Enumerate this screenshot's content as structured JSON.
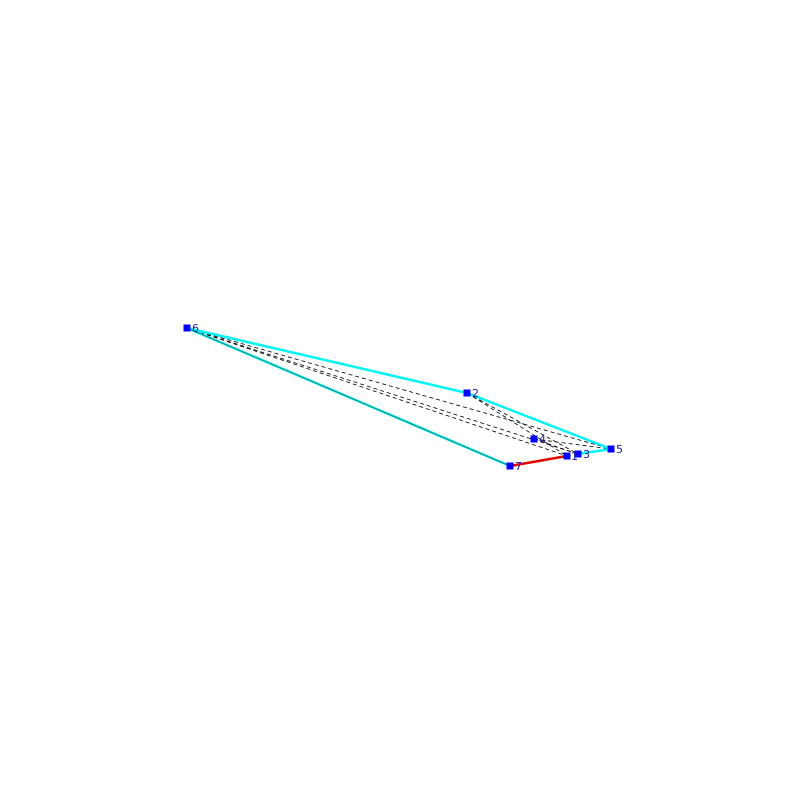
{
  "diagram": {
    "colors": {
      "background": "#ffffff",
      "hull_edge": "#00f5f5",
      "highlight_edge": "#e00000",
      "internal_edge": "#000000",
      "vertex": "#0000ff"
    },
    "vertices": [
      {
        "id": "1",
        "label": "1"
      },
      {
        "id": "2",
        "label": "2"
      },
      {
        "id": "3",
        "label": "3"
      },
      {
        "id": "4",
        "label": "4"
      },
      {
        "id": "5",
        "label": "5"
      },
      {
        "id": "6",
        "label": "6"
      },
      {
        "id": "7",
        "label": "7"
      }
    ],
    "hull_edges": [
      [
        "6",
        "2"
      ],
      [
        "2",
        "5"
      ],
      [
        "5",
        "3"
      ],
      [
        "6",
        "7"
      ]
    ],
    "highlight_edges": [
      [
        "7",
        "1"
      ]
    ],
    "internal_edges": [
      [
        "6",
        "5"
      ],
      [
        "6",
        "3"
      ],
      [
        "6",
        "1"
      ],
      [
        "2",
        "1"
      ],
      [
        "2",
        "3"
      ],
      [
        "4",
        "5"
      ],
      [
        "4",
        "3"
      ]
    ]
  }
}
